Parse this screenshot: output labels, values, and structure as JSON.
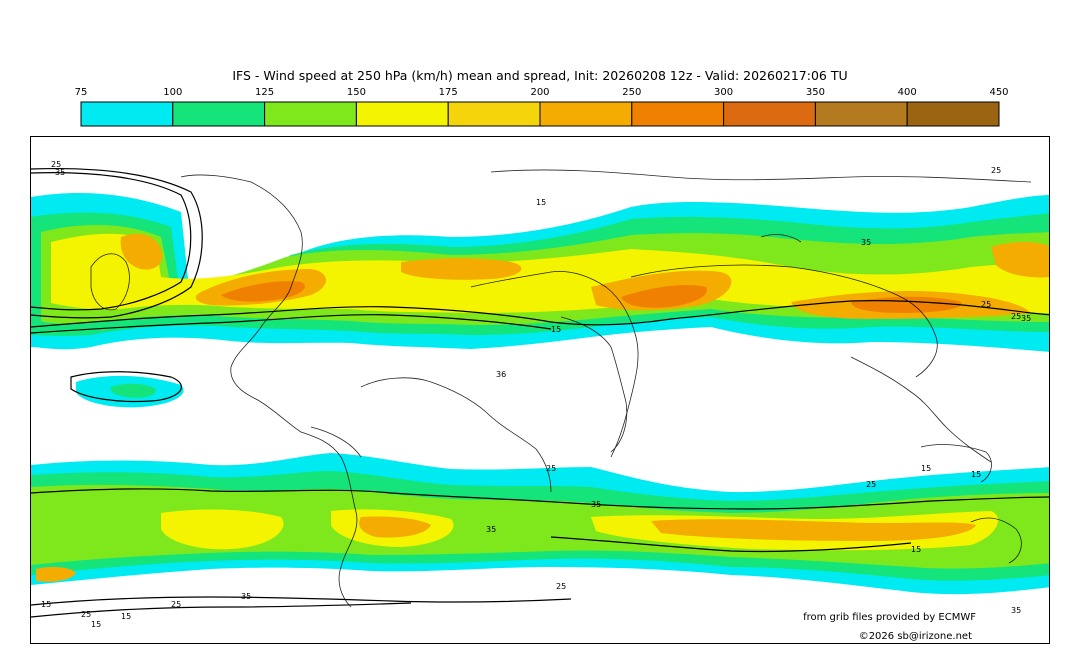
{
  "title": "IFS - Wind speed at 250 hPa (km/h) mean and spread, Init: 20260208 12z - Valid: 20260217:06 TU",
  "legend": {
    "ticks": [
      "75",
      "100",
      "125",
      "150",
      "175",
      "200",
      "250",
      "300",
      "350",
      "400",
      "450"
    ],
    "colors": [
      "#00eaf2",
      "#14e47a",
      "#7fe81c",
      "#f4f400",
      "#f4d40a",
      "#f4ac00",
      "#f08000",
      "#dc6a10",
      "#b47a20",
      "#9a6412"
    ]
  },
  "spread_contour_labels": [
    "25",
    "35",
    "15",
    "25",
    "35",
    "25",
    "15",
    "25",
    "35",
    "36",
    "15",
    "25",
    "15",
    "25",
    "35",
    "35",
    "15",
    "35",
    "25",
    "15",
    "35",
    "25",
    "15",
    "25",
    "15"
  ],
  "credits": {
    "source": "from grib files provided by ECMWF",
    "copyright": "©2026 sb@irizone.net"
  }
}
